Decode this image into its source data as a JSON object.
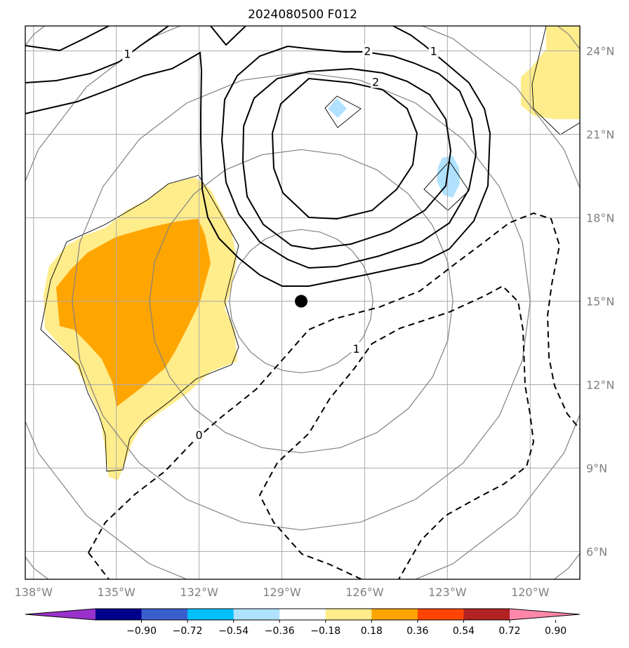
{
  "title": "2024080500 F012",
  "map": {
    "lon_range": [
      -138.3,
      -118.2
    ],
    "lat_range": [
      5.0,
      24.9
    ],
    "lon_ticks": [
      {
        "value": -138,
        "label": "138°W"
      },
      {
        "value": -135,
        "label": "135°W"
      },
      {
        "value": -132,
        "label": "132°W"
      },
      {
        "value": -129,
        "label": "129°W"
      },
      {
        "value": -126,
        "label": "126°W"
      },
      {
        "value": -123,
        "label": "123°W"
      },
      {
        "value": -120,
        "label": "120°W"
      }
    ],
    "lat_ticks": [
      {
        "value": 24,
        "label": "24°N"
      },
      {
        "value": 21,
        "label": "21°N"
      },
      {
        "value": 18,
        "label": "18°N"
      },
      {
        "value": 15,
        "label": "15°N"
      },
      {
        "value": 12,
        "label": "12°N"
      },
      {
        "value": 9,
        "label": "9°N"
      },
      {
        "value": 6,
        "label": "6°N"
      }
    ],
    "grid": true,
    "grid_color": "#aaaaaa",
    "center_marker": {
      "lon": -128.3,
      "lat": 15.0,
      "color": "#000000"
    },
    "range_rings": {
      "color": "#808080",
      "radii_deg": [
        2.6,
        5.5,
        8.3,
        11.0,
        13.7
      ]
    },
    "contour_labels": [
      {
        "text": "1",
        "lon": -134.6,
        "lat": 23.9
      },
      {
        "text": "2",
        "lon": -125.9,
        "lat": 24.0
      },
      {
        "text": "1",
        "lon": -123.5,
        "lat": 24.0
      },
      {
        "text": "2",
        "lon": -125.6,
        "lat": 22.9
      },
      {
        "text": "0",
        "lon": -132.0,
        "lat": 10.2
      },
      {
        "text": "1",
        "lon": -126.3,
        "lat": 13.3
      }
    ]
  },
  "colorbar": {
    "ticks": [
      "−0.90",
      "−0.72",
      "−0.54",
      "−0.36",
      "−0.18",
      "0.18",
      "0.36",
      "0.54",
      "0.72",
      "0.90"
    ],
    "colors": [
      "#9932cc",
      "#00008b",
      "#3a5fcd",
      "#00bfff",
      "#b0e2ff",
      "#ffffff",
      "#ffec8b",
      "#ffa500",
      "#ff4500",
      "#b22222",
      "#ff88aa"
    ],
    "extend": "both"
  }
}
